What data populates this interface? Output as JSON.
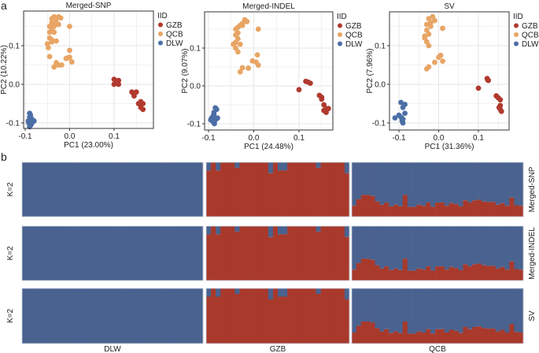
{
  "panel_labels": {
    "a": "a",
    "b": "b"
  },
  "colors": {
    "GZB": "#b03a2e",
    "QCB": "#e8a565",
    "DLW": "#4b6ea6",
    "bar_blue": "#4a628f",
    "bar_red": "#a8392b"
  },
  "chart_data": [
    {
      "type": "scatter",
      "title": "Merged-SNP",
      "xlabel": "PC1 (23.00%)",
      "ylabel": "PC2 (10.22%)",
      "xticks": [
        "-0.1",
        "0.0",
        "0.1"
      ],
      "yticks": [
        "-0.1",
        "0.0",
        "0.1"
      ],
      "legend": {
        "title": "IID",
        "entries": [
          "GZB",
          "QCB",
          "DLW"
        ],
        "placement": "right"
      },
      "grid": true,
      "series": [
        {
          "name": "GZB",
          "points": [
            [
              0.1,
              0.013
            ],
            [
              0.1,
              0.0
            ],
            [
              0.105,
              0.003
            ],
            [
              0.11,
              0.01
            ],
            [
              0.11,
              0.0
            ],
            [
              0.14,
              -0.02
            ],
            [
              0.145,
              -0.025
            ],
            [
              0.15,
              -0.02
            ],
            [
              0.145,
              -0.03
            ],
            [
              0.16,
              -0.05
            ],
            [
              0.165,
              -0.05
            ],
            [
              0.16,
              -0.06
            ],
            [
              0.165,
              -0.065
            ],
            [
              0.155,
              -0.05
            ],
            [
              0.16,
              -0.045
            ]
          ]
        },
        {
          "name": "QCB",
          "points": [
            [
              -0.04,
              0.17
            ],
            [
              -0.035,
              0.175
            ],
            [
              -0.03,
              0.17
            ],
            [
              -0.025,
              0.175
            ],
            [
              -0.02,
              0.172
            ],
            [
              -0.04,
              0.16
            ],
            [
              -0.03,
              0.16
            ],
            [
              -0.025,
              0.155
            ],
            [
              -0.045,
              0.15
            ],
            [
              -0.035,
              0.15
            ],
            [
              -0.04,
              0.14
            ],
            [
              -0.045,
              0.135
            ],
            [
              -0.035,
              0.135
            ],
            [
              -0.045,
              0.12
            ],
            [
              -0.04,
              0.115
            ],
            [
              -0.03,
              0.112
            ],
            [
              -0.05,
              0.105
            ],
            [
              -0.048,
              0.095
            ],
            [
              -0.04,
              0.11
            ],
            [
              0.0,
              0.15
            ],
            [
              -0.045,
              0.072
            ],
            [
              -0.03,
              0.056
            ],
            [
              -0.025,
              0.05
            ],
            [
              -0.018,
              0.05
            ],
            [
              -0.035,
              0.045
            ],
            [
              0.0,
              0.088
            ],
            [
              -0.005,
              0.068
            ],
            [
              0.0,
              0.07
            ],
            [
              0.005,
              0.058
            ],
            [
              -0.008,
              0.067
            ]
          ]
        },
        {
          "name": "DLW",
          "points": [
            [
              -0.09,
              -0.075
            ],
            [
              -0.088,
              -0.08
            ],
            [
              -0.085,
              -0.09
            ],
            [
              -0.09,
              -0.1
            ],
            [
              -0.093,
              -0.095
            ],
            [
              -0.087,
              -0.105
            ],
            [
              -0.09,
              -0.11
            ],
            [
              -0.085,
              -0.1
            ],
            [
              -0.08,
              -0.095
            ],
            [
              -0.09,
              -0.085
            ],
            [
              -0.092,
              -0.1
            ]
          ]
        }
      ]
    },
    {
      "type": "scatter",
      "title": "Merged-INDEL",
      "xlabel": "PC1 (24.48%)",
      "ylabel": "PC2 (9.07%)",
      "xticks": [
        "-0.1",
        "0.0",
        "0.1"
      ],
      "yticks": [
        "-0.1",
        "0.0",
        "0.1"
      ],
      "legend": {
        "title": "IID",
        "entries": [
          "GZB",
          "QCB",
          "DLW"
        ],
        "placement": "right"
      },
      "grid": true,
      "series": [
        {
          "name": "GZB",
          "points": [
            [
              0.1,
              -0.01
            ],
            [
              0.12,
              0.01
            ],
            [
              0.125,
              0.007
            ],
            [
              0.115,
              0.012
            ],
            [
              0.145,
              -0.025
            ],
            [
              0.15,
              -0.03
            ],
            [
              0.15,
              -0.035
            ],
            [
              0.155,
              -0.05
            ],
            [
              0.16,
              -0.06
            ],
            [
              0.165,
              -0.06
            ],
            [
              0.155,
              -0.065
            ],
            [
              0.16,
              -0.07
            ]
          ]
        },
        {
          "name": "QCB",
          "points": [
            [
              -0.02,
              0.175
            ],
            [
              -0.015,
              0.17
            ],
            [
              -0.025,
              0.165
            ],
            [
              -0.03,
              0.16
            ],
            [
              -0.035,
              0.155
            ],
            [
              -0.04,
              0.15
            ],
            [
              -0.035,
              0.14
            ],
            [
              -0.04,
              0.135
            ],
            [
              -0.035,
              0.125
            ],
            [
              -0.04,
              0.115
            ],
            [
              -0.045,
              0.11
            ],
            [
              -0.03,
              0.11
            ],
            [
              -0.04,
              0.1
            ],
            [
              -0.035,
              0.09
            ],
            [
              -0.025,
              0.16
            ],
            [
              0.01,
              0.15
            ],
            [
              0.008,
              0.082
            ],
            [
              -0.003,
              0.066
            ],
            [
              0.005,
              0.063
            ],
            [
              0.01,
              0.055
            ],
            [
              -0.03,
              0.037
            ],
            [
              -0.025,
              0.048
            ],
            [
              -0.012,
              0.047
            ]
          ]
        },
        {
          "name": "DLW",
          "points": [
            [
              -0.085,
              -0.058
            ],
            [
              -0.082,
              -0.062
            ],
            [
              -0.088,
              -0.07
            ],
            [
              -0.09,
              -0.08
            ],
            [
              -0.093,
              -0.085
            ],
            [
              -0.085,
              -0.09
            ],
            [
              -0.09,
              -0.095
            ],
            [
              -0.087,
              -0.1
            ],
            [
              -0.08,
              -0.085
            ],
            [
              -0.095,
              -0.09
            ],
            [
              -0.088,
              -0.075
            ]
          ]
        }
      ]
    },
    {
      "type": "scatter",
      "title": "SV",
      "xlabel": "PC1 (31.36%)",
      "ylabel": "PC2 (7.96%)",
      "xticks": [
        "-0.1",
        "0.0",
        "0.1"
      ],
      "yticks": [
        "-0.1",
        "0.0",
        "0.1"
      ],
      "legend": {
        "title": "IID",
        "entries": [
          "GZB",
          "QCB",
          "DLW"
        ],
        "placement": "right"
      },
      "grid": true,
      "series": [
        {
          "name": "GZB",
          "points": [
            [
              0.1,
              -0.01
            ],
            [
              0.122,
              0.015
            ],
            [
              0.125,
              0.01
            ],
            [
              0.123,
              0.012
            ],
            [
              0.145,
              -0.03
            ],
            [
              0.15,
              -0.035
            ],
            [
              0.155,
              -0.04
            ],
            [
              0.152,
              -0.06
            ],
            [
              0.155,
              -0.065
            ],
            [
              0.158,
              -0.07
            ],
            [
              0.155,
              -0.055
            ]
          ]
        },
        {
          "name": "QCB",
          "points": [
            [
              -0.025,
              0.17
            ],
            [
              -0.015,
              0.175
            ],
            [
              -0.01,
              0.165
            ],
            [
              -0.02,
              0.16
            ],
            [
              -0.03,
              0.155
            ],
            [
              -0.02,
              0.15
            ],
            [
              -0.03,
              0.14
            ],
            [
              -0.025,
              0.13
            ],
            [
              -0.035,
              0.12
            ],
            [
              -0.03,
              0.11
            ],
            [
              -0.025,
              0.1
            ],
            [
              -0.035,
              0.125
            ],
            [
              0.01,
              0.145
            ],
            [
              0.005,
              0.075
            ],
            [
              0.0,
              0.07
            ],
            [
              0.01,
              0.06
            ],
            [
              -0.01,
              0.057
            ],
            [
              -0.025,
              0.045
            ],
            [
              -0.03,
              0.04
            ]
          ]
        },
        {
          "name": "DLW",
          "points": [
            [
              -0.095,
              -0.047
            ],
            [
              -0.085,
              -0.052
            ],
            [
              -0.09,
              -0.06
            ],
            [
              -0.1,
              -0.08
            ],
            [
              -0.11,
              -0.087
            ],
            [
              -0.095,
              -0.085
            ],
            [
              -0.09,
              -0.09
            ],
            [
              -0.09,
              -0.1
            ],
            [
              -0.085,
              -0.075
            ],
            [
              -0.092,
              -0.095
            ]
          ]
        }
      ]
    },
    {
      "type": "bar",
      "subtype": "stacked-admixture",
      "k_label": "K=2",
      "groups": [
        "DLW",
        "GZB",
        "QCB"
      ],
      "rows": [
        "Merged-SNP",
        "Merged-INDEL",
        "SV"
      ],
      "red_fraction": {
        "DLW": [
          0,
          0,
          0,
          0,
          0,
          0,
          0,
          0,
          0,
          0,
          0,
          0,
          0,
          0,
          0,
          0,
          0,
          0,
          0,
          0,
          0,
          0,
          0,
          0,
          0,
          0,
          0,
          0,
          0,
          0,
          0,
          0,
          0,
          0,
          0,
          0,
          0,
          0
        ],
        "GZB": [
          0.85,
          1,
          0.85,
          1,
          1,
          1,
          0.9,
          1,
          1,
          1,
          1,
          1,
          1,
          0.8,
          1,
          0.85,
          0.85,
          1,
          1,
          1,
          1,
          1,
          1,
          0.9,
          1,
          1,
          1,
          1,
          1,
          0.8
        ],
        "QCB": [
          0.2,
          0.32,
          0.4,
          0.4,
          0.38,
          0.28,
          0.22,
          0.26,
          0.19,
          0.22,
          0.19,
          0.4,
          0.18,
          0.18,
          0.22,
          0.2,
          0.26,
          0.18,
          0.26,
          0.26,
          0.2,
          0.25,
          0.23,
          0.19,
          0.3,
          0.26,
          0.3,
          0.31,
          0.28,
          0.27,
          0.27,
          0.22,
          0.25,
          0.2,
          0.35,
          0.21,
          0.2
        ]
      }
    }
  ]
}
